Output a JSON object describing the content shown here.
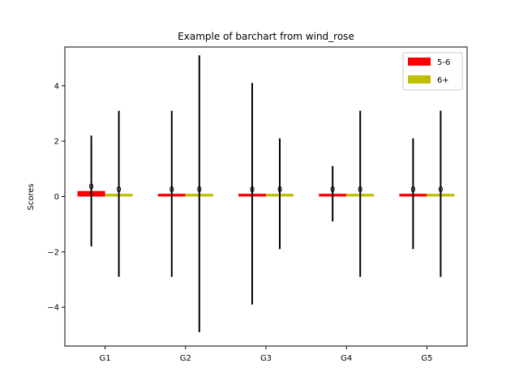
{
  "chart_data": {
    "type": "bar",
    "title": "Example of barchart from wind_rose",
    "xlabel": "",
    "ylabel": "Scores",
    "categories": [
      "G1",
      "G2",
      "G3",
      "G4",
      "G5"
    ],
    "ylim": [
      -5.4,
      5.4
    ],
    "yticks": [
      -4,
      -2,
      0,
      2,
      4
    ],
    "ytick_labels": [
      "−4",
      "−2",
      "0",
      "2",
      "4"
    ],
    "grid": false,
    "legend_position": "top-right",
    "series": [
      {
        "name": "5-6",
        "color": "#ff0000",
        "values": [
          0.2,
          0.1,
          0.1,
          0.1,
          0.1
        ],
        "errors": [
          2.0,
          3.0,
          4.0,
          1.0,
          2.0
        ],
        "data_labels": [
          "0",
          "0",
          "0",
          "0",
          "0"
        ]
      },
      {
        "name": "6+",
        "color": "#bfbf00",
        "values": [
          0.1,
          0.1,
          0.1,
          0.1,
          0.1
        ],
        "errors": [
          3.0,
          5.0,
          2.0,
          3.0,
          3.0
        ],
        "data_labels": [
          "0",
          "0",
          "0",
          "0",
          "0"
        ]
      }
    ]
  }
}
